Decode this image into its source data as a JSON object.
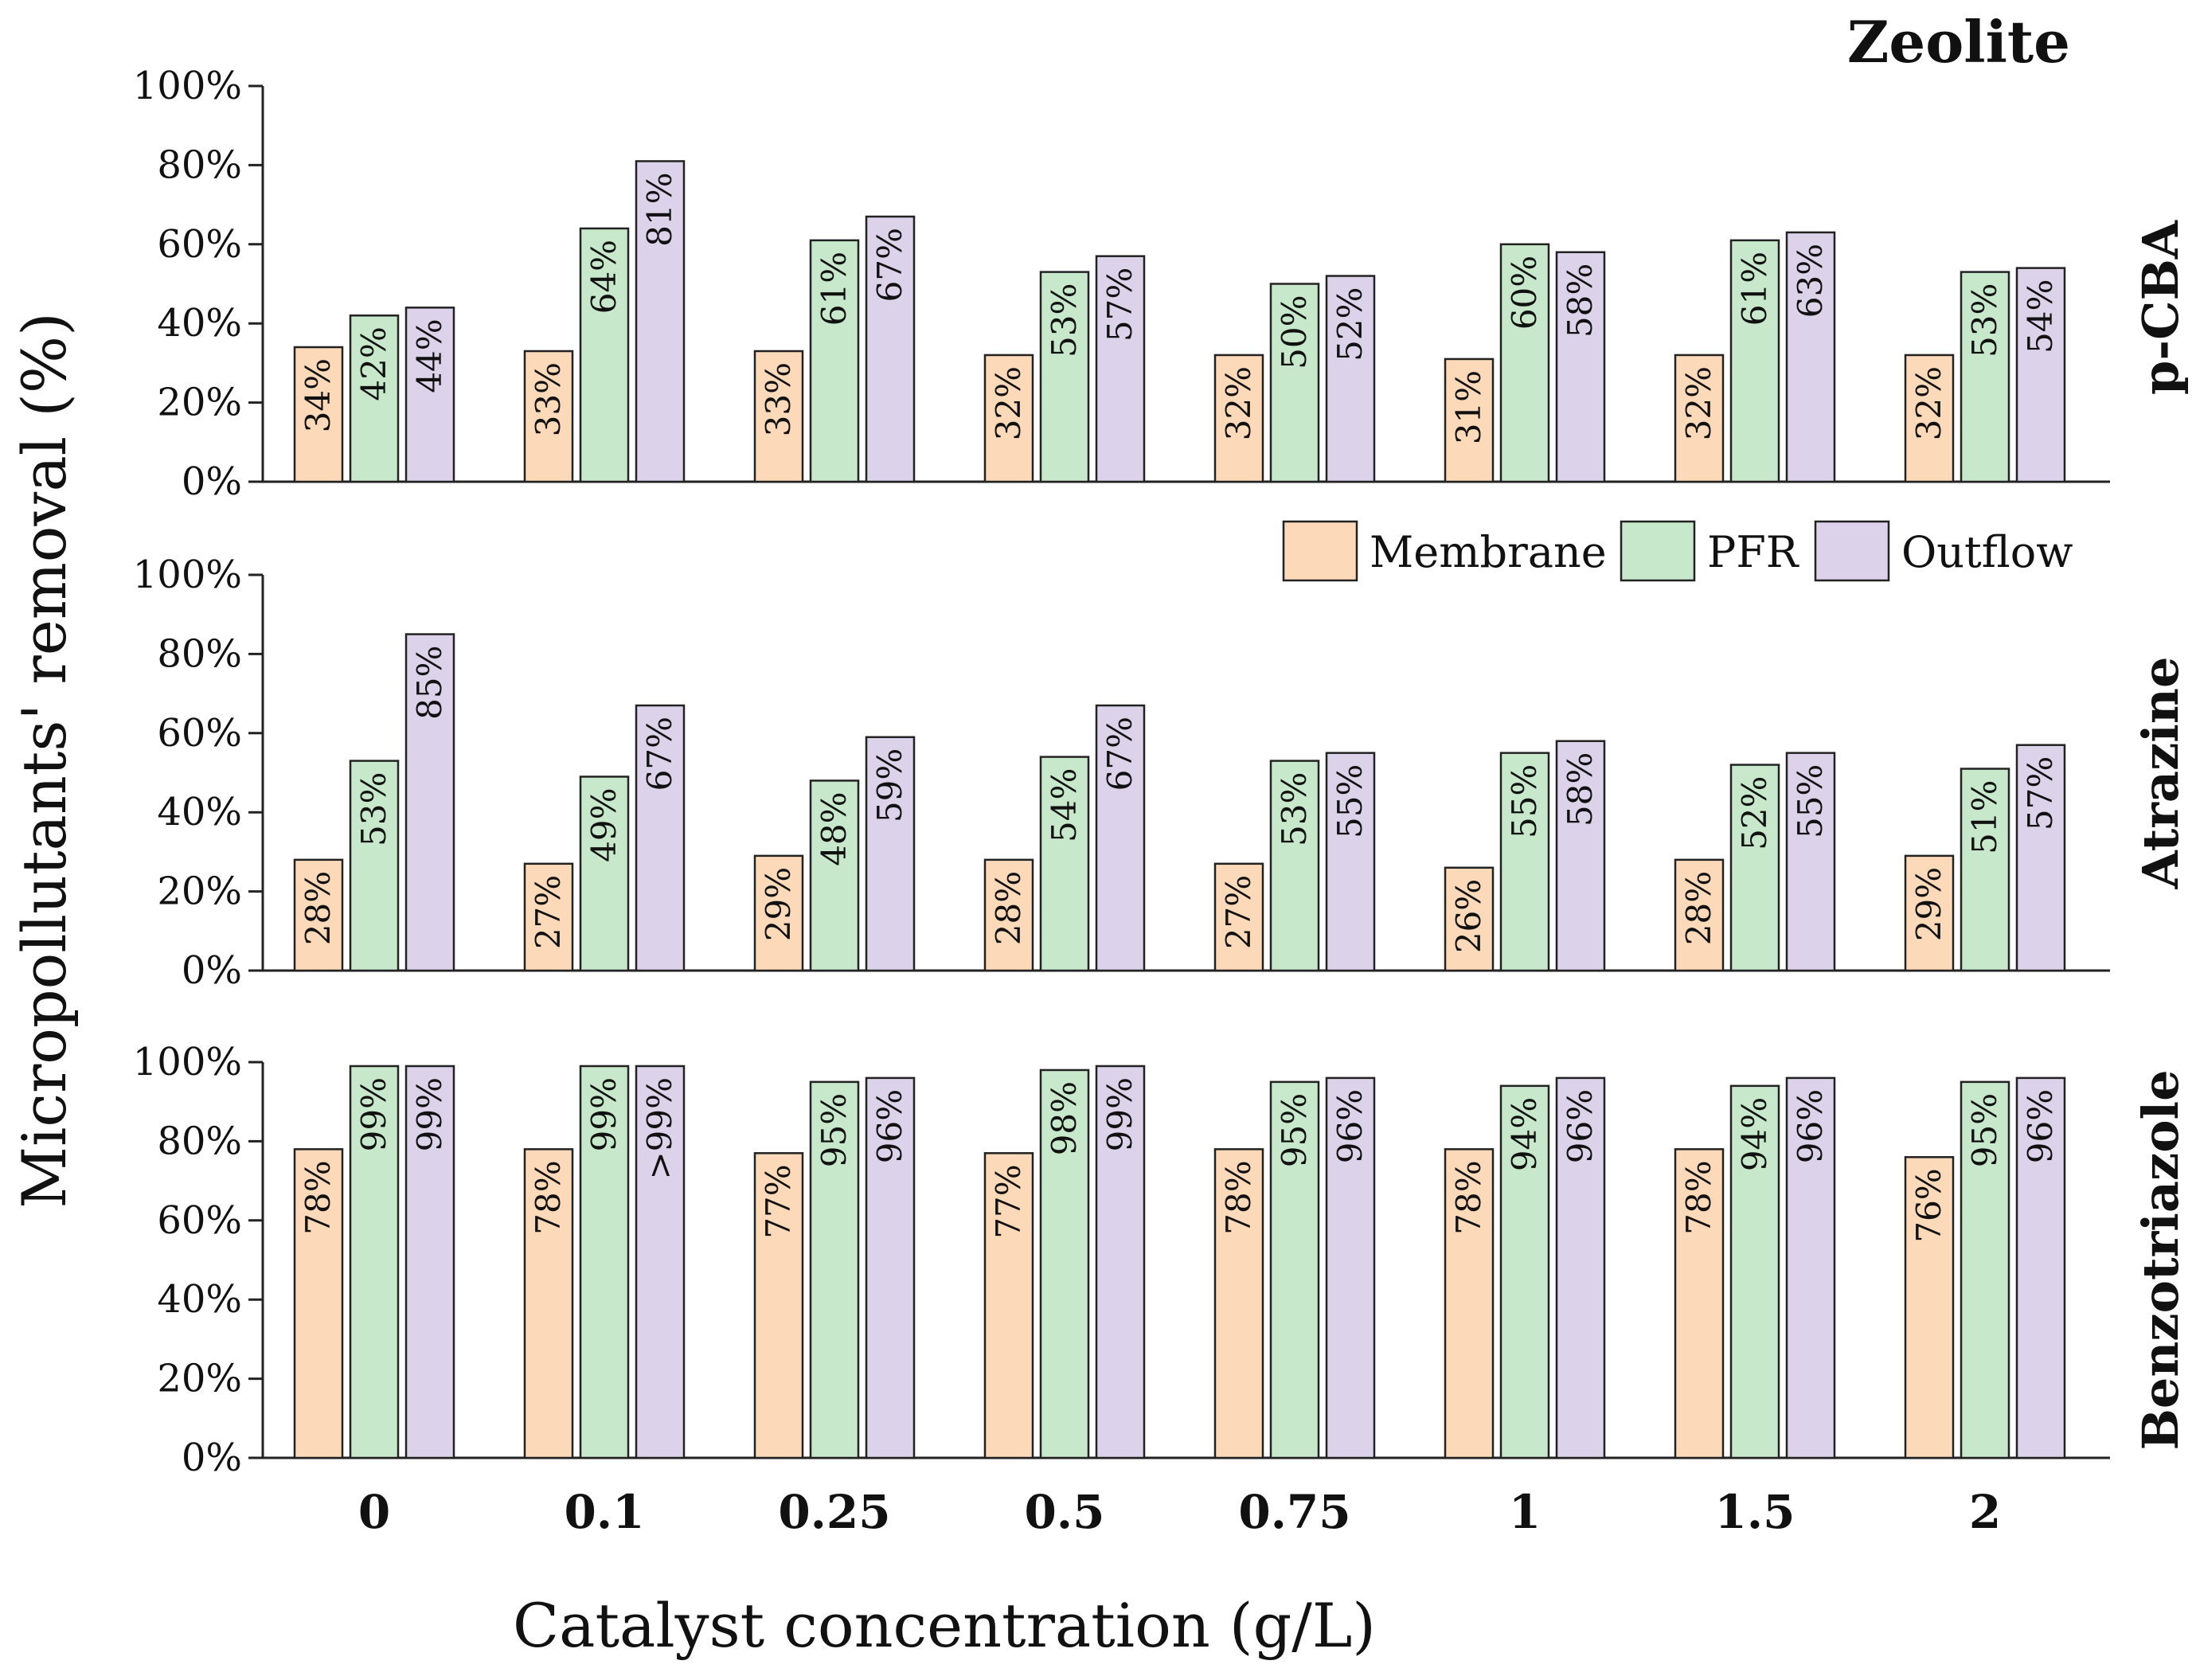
{
  "chart_data": {
    "type": "bar",
    "title": "Zeolite",
    "xlabel": "Catalyst concentration (g/L)",
    "ylabel": "Micropollutants' removal (%)",
    "ylim": [
      0,
      100
    ],
    "yticks": [
      "0%",
      "20%",
      "40%",
      "60%",
      "80%",
      "100%"
    ],
    "categories": [
      "0",
      "0.1",
      "0.25",
      "0.5",
      "0.75",
      "1",
      "1.5",
      "2"
    ],
    "legend_position": "top-right of middle panel",
    "series_meta": [
      {
        "name": "Membrane",
        "color": "#fcd9b8"
      },
      {
        "name": "PFR",
        "color": "#c8e8cb"
      },
      {
        "name": "Outflow",
        "color": "#dcd2ea"
      }
    ],
    "panels": [
      {
        "label": "p-CBA",
        "series": [
          {
            "name": "Membrane",
            "values": [
              34,
              33,
              33,
              32,
              32,
              31,
              32,
              32
            ],
            "labels": [
              "34%",
              "33%",
              "33%",
              "32%",
              "32%",
              "31%",
              "32%",
              "32%"
            ]
          },
          {
            "name": "PFR",
            "values": [
              42,
              64,
              61,
              53,
              50,
              60,
              61,
              53
            ],
            "labels": [
              "42%",
              "64%",
              "61%",
              "53%",
              "50%",
              "60%",
              "61%",
              "53%"
            ]
          },
          {
            "name": "Outflow",
            "values": [
              44,
              81,
              67,
              57,
              52,
              58,
              63,
              54
            ],
            "labels": [
              "44%",
              "81%",
              "67%",
              "57%",
              "52%",
              "58%",
              "63%",
              "54%"
            ]
          }
        ]
      },
      {
        "label": "Atrazine",
        "series": [
          {
            "name": "Membrane",
            "values": [
              28,
              27,
              29,
              28,
              27,
              26,
              28,
              29
            ],
            "labels": [
              "28%",
              "27%",
              "29%",
              "28%",
              "27%",
              "26%",
              "28%",
              "29%"
            ]
          },
          {
            "name": "PFR",
            "values": [
              53,
              49,
              48,
              54,
              53,
              55,
              52,
              51
            ],
            "labels": [
              "53%",
              "49%",
              "48%",
              "54%",
              "53%",
              "55%",
              "52%",
              "51%"
            ]
          },
          {
            "name": "Outflow",
            "values": [
              85,
              67,
              59,
              67,
              55,
              58,
              55,
              57
            ],
            "labels": [
              "85%",
              "67%",
              "59%",
              "67%",
              "55%",
              "58%",
              "55%",
              "57%"
            ]
          }
        ]
      },
      {
        "label": "Benzotriazole",
        "series": [
          {
            "name": "Membrane",
            "values": [
              78,
              78,
              77,
              77,
              78,
              78,
              78,
              76
            ],
            "labels": [
              "78%",
              "78%",
              "77%",
              "77%",
              "78%",
              "78%",
              "78%",
              "76%"
            ]
          },
          {
            "name": "PFR",
            "values": [
              99,
              99,
              95,
              98,
              95,
              94,
              94,
              95
            ],
            "labels": [
              "99%",
              "99%",
              "95%",
              "98%",
              "95%",
              "94%",
              "94%",
              "95%"
            ]
          },
          {
            "name": "Outflow",
            "values": [
              99,
              99,
              96,
              99,
              96,
              96,
              96,
              96
            ],
            "labels": [
              "99%",
              ">99%",
              "96%",
              "99%",
              "96%",
              "96%",
              "96%",
              "96%"
            ]
          }
        ]
      }
    ]
  }
}
